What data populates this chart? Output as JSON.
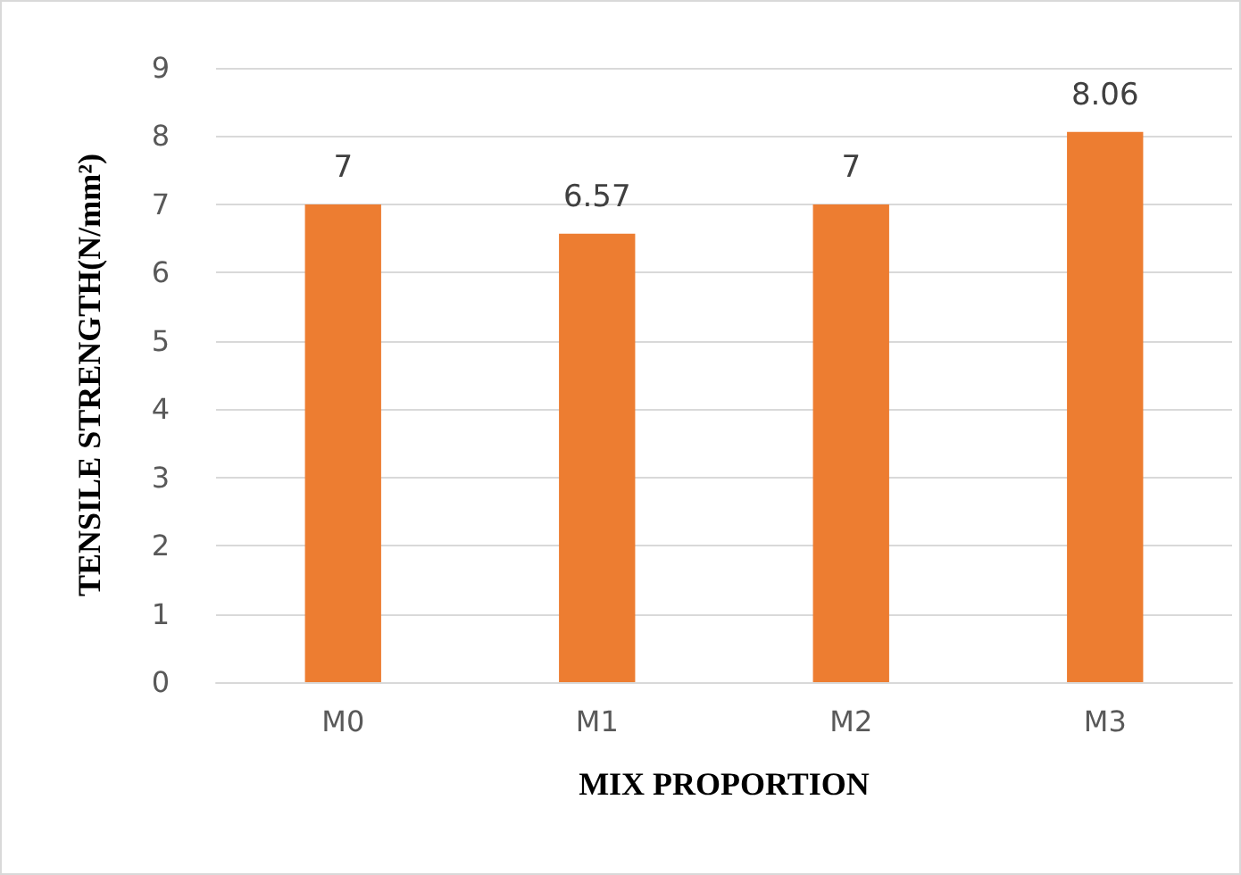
{
  "chart_data": {
    "type": "bar",
    "xlabel": "MIX PROPORTION",
    "ylabel": "TENSILE STRENGTH(N/mm²)",
    "categories": [
      "M0",
      "M1",
      "M2",
      "M3"
    ],
    "values": [
      7,
      6.57,
      7,
      8.06
    ],
    "color": "#ed7d31",
    "ylim": [
      0,
      9
    ],
    "yticks": [
      0,
      1,
      2,
      3,
      4,
      5,
      6,
      7,
      8,
      9
    ],
    "grid": "y",
    "data_labels": true
  }
}
